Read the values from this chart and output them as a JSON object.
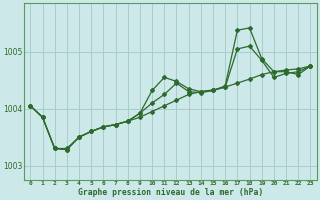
{
  "title": "Graphe pression niveau de la mer (hPa)",
  "background_color": "#cce8e8",
  "grid_color": "#aacccc",
  "line_color": "#2d6a2d",
  "xlim": [
    -0.5,
    23.5
  ],
  "ylim": [
    1002.75,
    1005.85
  ],
  "yticks": [
    1003,
    1004,
    1005
  ],
  "xticks": [
    0,
    1,
    2,
    3,
    4,
    5,
    6,
    7,
    8,
    9,
    10,
    11,
    12,
    13,
    14,
    15,
    16,
    17,
    18,
    19,
    20,
    21,
    22,
    23
  ],
  "line1_x": [
    0,
    1,
    2,
    3,
    4,
    5,
    6,
    7,
    8,
    9,
    10,
    11,
    12,
    13,
    14,
    15,
    16,
    17,
    18,
    19,
    20,
    21,
    22,
    23
  ],
  "line1_y": [
    1004.05,
    1003.85,
    1003.3,
    1003.3,
    1003.5,
    1003.6,
    1003.68,
    1003.72,
    1003.78,
    1003.85,
    1003.95,
    1004.05,
    1004.15,
    1004.25,
    1004.3,
    1004.33,
    1004.38,
    1004.45,
    1004.52,
    1004.6,
    1004.65,
    1004.68,
    1004.7,
    1004.75
  ],
  "line2_x": [
    0,
    1,
    2,
    3,
    4,
    5,
    6,
    7,
    8,
    9,
    10,
    11,
    12,
    13,
    14,
    15,
    16,
    17,
    18,
    19,
    20,
    21,
    22,
    23
  ],
  "line2_y": [
    1004.05,
    1003.85,
    1003.3,
    1003.28,
    1003.5,
    1003.6,
    1003.68,
    1003.72,
    1003.78,
    1003.92,
    1004.1,
    1004.25,
    1004.45,
    1004.3,
    1004.28,
    1004.32,
    1004.38,
    1005.05,
    1005.1,
    1004.85,
    1004.55,
    1004.62,
    1004.65,
    1004.75
  ],
  "line3_x": [
    0,
    1,
    2,
    3,
    4,
    5,
    6,
    7,
    8,
    9,
    10,
    11,
    12,
    13,
    14,
    15,
    16,
    17,
    18,
    19,
    20,
    21,
    22,
    23
  ],
  "line3_y": [
    1004.05,
    1003.85,
    1003.3,
    1003.28,
    1003.5,
    1003.6,
    1003.68,
    1003.72,
    1003.78,
    1003.92,
    1004.32,
    1004.55,
    1004.48,
    1004.35,
    1004.3,
    1004.32,
    1004.4,
    1005.38,
    1005.42,
    1004.88,
    1004.65,
    1004.65,
    1004.6,
    1004.75
  ]
}
